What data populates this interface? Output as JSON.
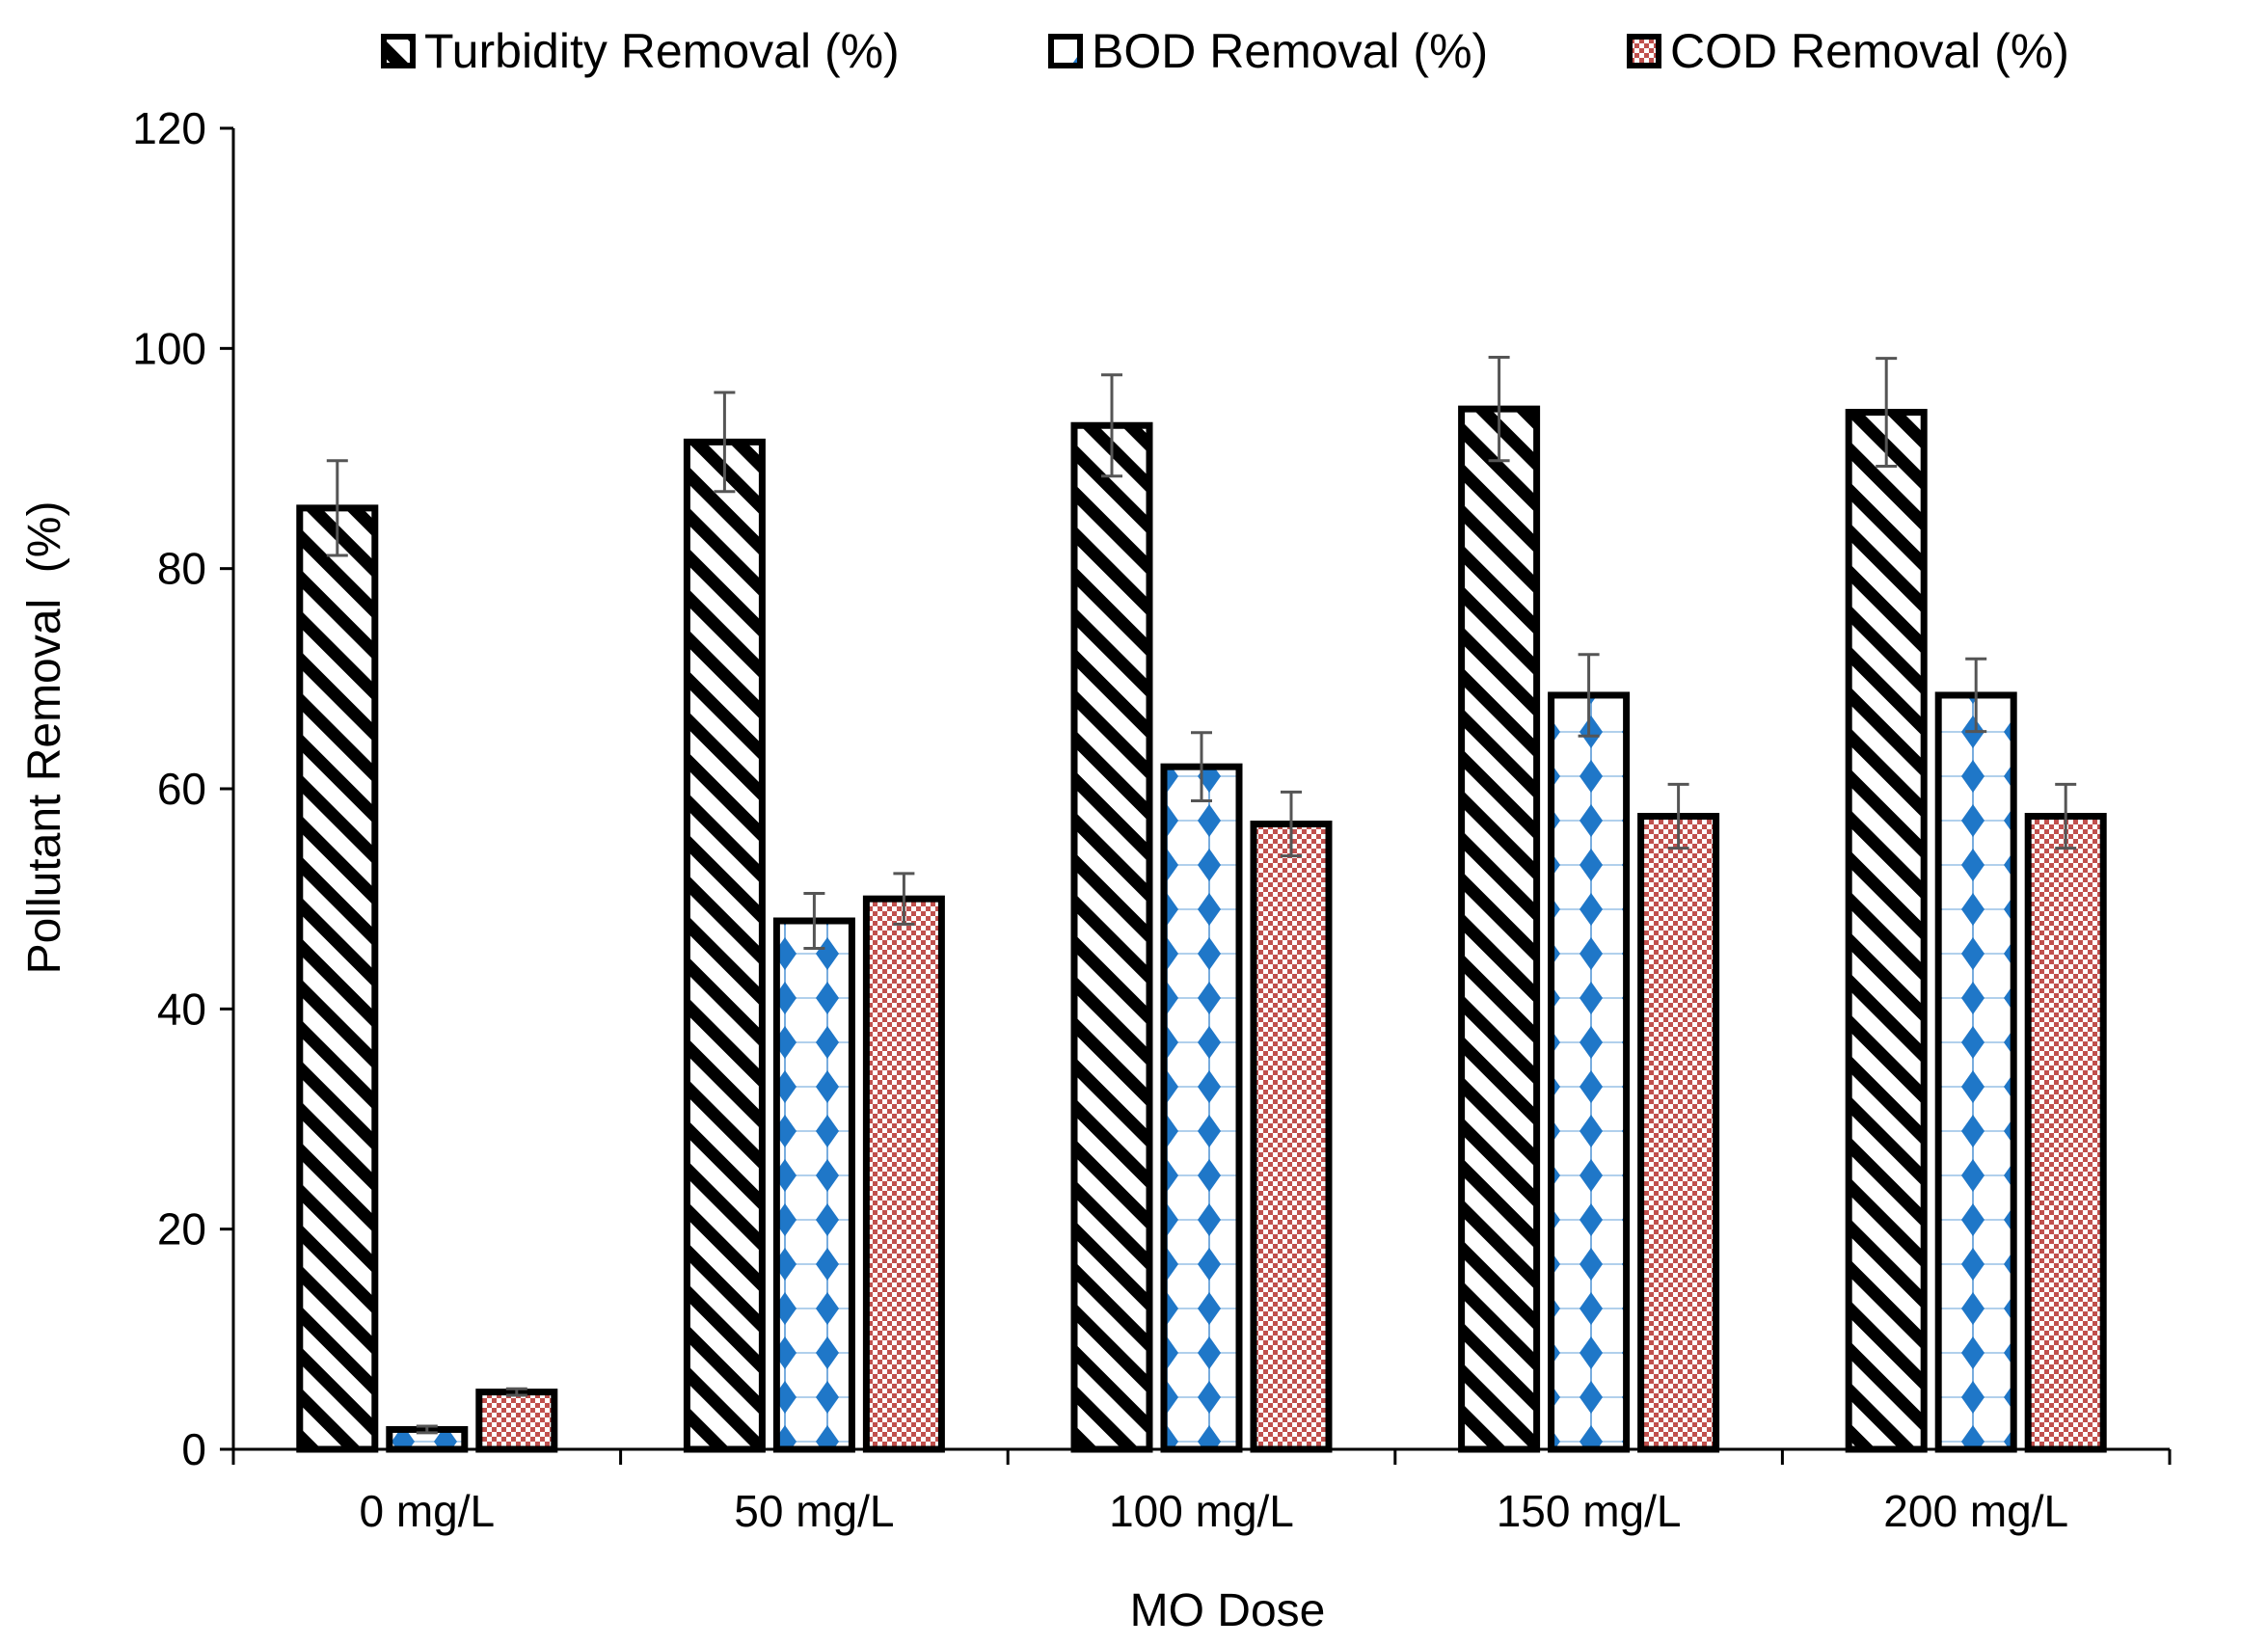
{
  "chart_data": {
    "type": "bar",
    "title": "",
    "xlabel": "MO Dose",
    "ylabel": "Pollutant Removal  (%)",
    "categories": [
      "0 mg/L",
      "50 mg/L",
      "100 mg/L",
      "150 mg/L",
      "200 mg/L"
    ],
    "ylim": [
      0,
      120
    ],
    "yticks": [
      0,
      20,
      40,
      60,
      80,
      100,
      120
    ],
    "grid": false,
    "legend_position": "top",
    "series": [
      {
        "name": "Turbidity Removal (%)",
        "pattern": "diagonal-stripes",
        "color": "#000000",
        "values": [
          85.5,
          91.5,
          93.0,
          94.5,
          94.2
        ],
        "errors": [
          4.3,
          4.5,
          4.6,
          4.7,
          4.9
        ]
      },
      {
        "name": "BOD Removal (%)",
        "pattern": "diamonds",
        "color": "#1f77c8",
        "values": [
          1.8,
          48.0,
          62.0,
          68.5,
          68.5
        ],
        "errors": [
          0.3,
          2.5,
          3.1,
          3.7,
          3.3
        ]
      },
      {
        "name": "COD Removal (%)",
        "pattern": "checker",
        "color": "#c0504d",
        "values": [
          5.2,
          50.0,
          56.8,
          57.5,
          57.5
        ],
        "errors": [
          0.3,
          2.3,
          2.9,
          2.9,
          2.9
        ]
      }
    ]
  }
}
